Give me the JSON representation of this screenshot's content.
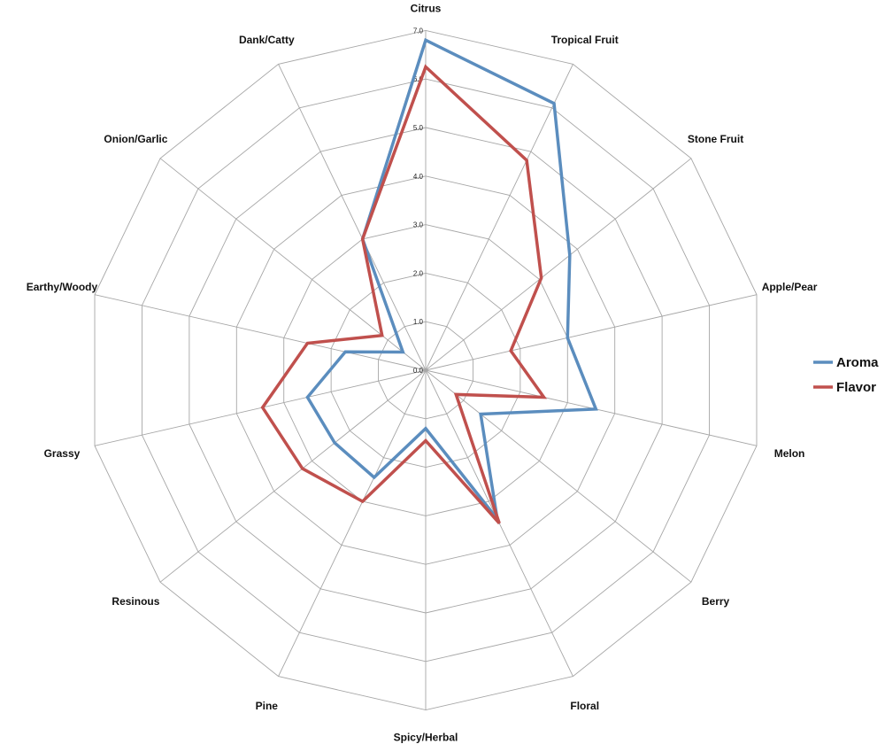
{
  "chart_data": {
    "type": "radar",
    "title": "",
    "categories": [
      "Citrus",
      "Tropical Fruit",
      "Stone Fruit",
      "Apple/Pear",
      "Melon",
      "Berry",
      "Floral",
      "Spicy/Herbal",
      "Pine",
      "Resinous",
      "Grassy",
      "Earthy/Woody",
      "Onion/Garlic",
      "Dank/Catty"
    ],
    "rlim": [
      0,
      7
    ],
    "ticks": [
      "0.0",
      "1.0",
      "2.0",
      "3.0",
      "4.0",
      "5.0",
      "6.0",
      "7.0"
    ],
    "grid": true,
    "legend_position": "right",
    "series": [
      {
        "name": "Aroma",
        "color": "#5B8DBE",
        "values": [
          6.8,
          6.1,
          3.8,
          3.0,
          3.6,
          1.45,
          3.4,
          1.2,
          2.45,
          2.4,
          2.5,
          1.7,
          0.6,
          3.0
        ]
      },
      {
        "name": "Flavor",
        "color": "#C0504D",
        "values": [
          6.25,
          4.8,
          3.05,
          1.8,
          2.5,
          0.8,
          3.5,
          1.45,
          3.0,
          3.25,
          3.45,
          2.5,
          1.15,
          3.0
        ]
      }
    ]
  }
}
